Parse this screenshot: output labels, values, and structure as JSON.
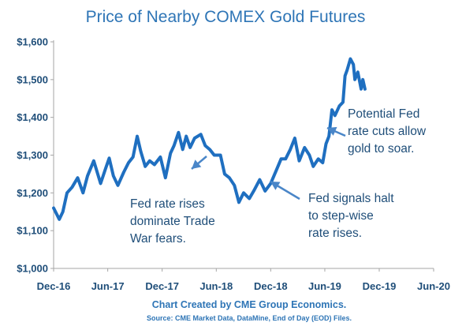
{
  "chart_data": {
    "type": "line",
    "title": "Price of Nearby COMEX Gold Futures",
    "xlabel": "",
    "ylabel": "",
    "ylim": [
      1000,
      1600
    ],
    "y_ticks": [
      "$1,000",
      "$1,100",
      "$1,200",
      "$1,300",
      "$1,400",
      "$1,500",
      "$1,600"
    ],
    "x_ticks": [
      "Dec-16",
      "Jun-17",
      "Dec-17",
      "Jun-18",
      "Dec-18",
      "Jun-19",
      "Dec-19",
      "Jun-20"
    ],
    "line_color": "#1f6fc0",
    "grid": false,
    "legend": "none",
    "series": [
      {
        "values": [
          [
            "2016-12-01",
            1160
          ],
          [
            "2016-12-20",
            1130
          ],
          [
            "2017-01-01",
            1150
          ],
          [
            "2017-01-15",
            1200
          ],
          [
            "2017-02-01",
            1215
          ],
          [
            "2017-02-20",
            1240
          ],
          [
            "2017-03-10",
            1200
          ],
          [
            "2017-03-25",
            1245
          ],
          [
            "2017-04-15",
            1285
          ],
          [
            "2017-05-08",
            1225
          ],
          [
            "2017-05-25",
            1265
          ],
          [
            "2017-06-06",
            1292
          ],
          [
            "2017-06-20",
            1245
          ],
          [
            "2017-07-05",
            1220
          ],
          [
            "2017-07-25",
            1255
          ],
          [
            "2017-08-10",
            1280
          ],
          [
            "2017-08-25",
            1295
          ],
          [
            "2017-09-08",
            1350
          ],
          [
            "2017-09-20",
            1310
          ],
          [
            "2017-10-05",
            1270
          ],
          [
            "2017-10-20",
            1285
          ],
          [
            "2017-11-05",
            1275
          ],
          [
            "2017-11-25",
            1295
          ],
          [
            "2017-12-12",
            1240
          ],
          [
            "2017-12-29",
            1305
          ],
          [
            "2018-01-10",
            1325
          ],
          [
            "2018-01-25",
            1360
          ],
          [
            "2018-02-08",
            1315
          ],
          [
            "2018-02-20",
            1350
          ],
          [
            "2018-03-05",
            1320
          ],
          [
            "2018-03-20",
            1345
          ],
          [
            "2018-04-10",
            1355
          ],
          [
            "2018-04-25",
            1325
          ],
          [
            "2018-05-10",
            1315
          ],
          [
            "2018-05-25",
            1300
          ],
          [
            "2018-06-15",
            1300
          ],
          [
            "2018-06-29",
            1250
          ],
          [
            "2018-07-15",
            1240
          ],
          [
            "2018-08-01",
            1220
          ],
          [
            "2018-08-16",
            1175
          ],
          [
            "2018-09-01",
            1200
          ],
          [
            "2018-09-20",
            1185
          ],
          [
            "2018-10-05",
            1205
          ],
          [
            "2018-10-25",
            1235
          ],
          [
            "2018-11-12",
            1205
          ],
          [
            "2018-12-01",
            1225
          ],
          [
            "2018-12-20",
            1260
          ],
          [
            "2019-01-05",
            1290
          ],
          [
            "2019-01-20",
            1290
          ],
          [
            "2019-02-05",
            1315
          ],
          [
            "2019-02-20",
            1345
          ],
          [
            "2019-03-07",
            1285
          ],
          [
            "2019-03-25",
            1320
          ],
          [
            "2019-04-10",
            1300
          ],
          [
            "2019-04-23",
            1270
          ],
          [
            "2019-05-10",
            1290
          ],
          [
            "2019-05-25",
            1280
          ],
          [
            "2019-06-05",
            1330
          ],
          [
            "2019-06-15",
            1350
          ],
          [
            "2019-06-25",
            1420
          ],
          [
            "2019-07-05",
            1405
          ],
          [
            "2019-07-20",
            1430
          ],
          [
            "2019-08-01",
            1440
          ],
          [
            "2019-08-08",
            1510
          ],
          [
            "2019-08-15",
            1525
          ],
          [
            "2019-08-26",
            1555
          ],
          [
            "2019-09-05",
            1540
          ],
          [
            "2019-09-10",
            1500
          ],
          [
            "2019-09-20",
            1520
          ],
          [
            "2019-10-01",
            1475
          ],
          [
            "2019-10-07",
            1500
          ],
          [
            "2019-10-14",
            1475
          ]
        ]
      }
    ],
    "annotations": [
      {
        "lines": [
          "Fed rate rises",
          "dominate Trade",
          "War fears."
        ]
      },
      {
        "lines": [
          "Fed signals halt",
          "to step-wise",
          "rate rises."
        ]
      },
      {
        "lines": [
          "Potential Fed",
          "rate cuts allow",
          "gold to soar."
        ]
      }
    ],
    "credit": "Chart Created by CME Group Economics.",
    "source": "Source:  CME Market Data, DataMine, End of Day (EOD) Files."
  }
}
